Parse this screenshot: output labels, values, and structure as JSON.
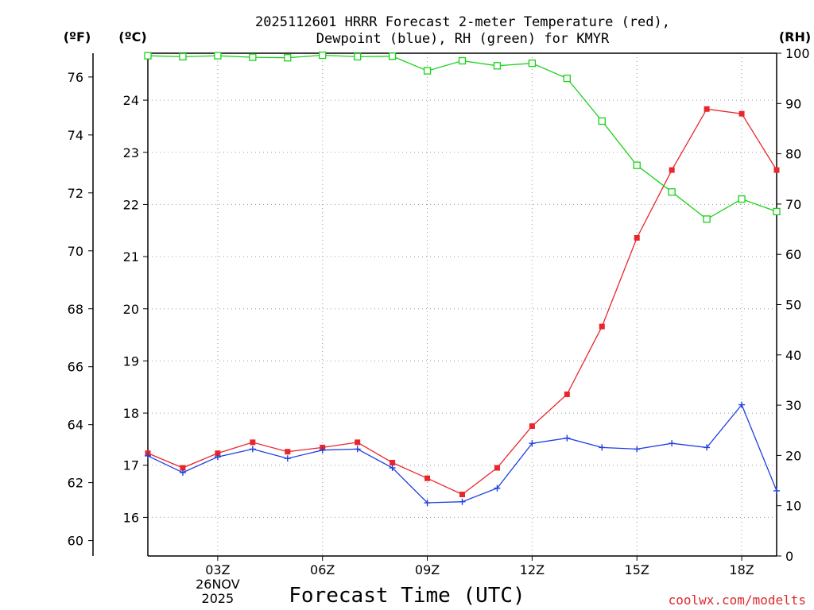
{
  "chart_data": {
    "type": "line",
    "title_lines": [
      "2025112601 HRRR Forecast 2-meter Temperature (red),",
      "Dewpoint (blue), RH (green) for KMYR"
    ],
    "xlabel": "Forecast Time (UTC)",
    "x_hours": [
      1,
      2,
      3,
      4,
      5,
      6,
      7,
      8,
      9,
      10,
      11,
      12,
      13,
      14,
      15,
      16,
      17,
      18,
      19
    ],
    "x_range": [
      1,
      19
    ],
    "x_ticks": [
      {
        "hour": 3,
        "label": "03Z"
      },
      {
        "hour": 6,
        "label": "06Z"
      },
      {
        "hour": 9,
        "label": "09Z"
      },
      {
        "hour": 12,
        "label": "12Z"
      },
      {
        "hour": 15,
        "label": "15Z"
      },
      {
        "hour": 18,
        "label": "18Z"
      }
    ],
    "date_label_lines": [
      "26NOV",
      "2025"
    ],
    "date_label_hour": 3,
    "unit_labels": {
      "fahrenheit": "(ºF)",
      "celsius": "(ºC)",
      "rh": "(RH)"
    },
    "celsius_axis": {
      "range": [
        15.26,
        24.9
      ],
      "ticks": [
        16,
        17,
        18,
        19,
        20,
        21,
        22,
        23,
        24
      ]
    },
    "fahrenheit_axis": {
      "ticks": [
        60,
        62,
        64,
        66,
        68,
        70,
        72,
        74,
        76
      ]
    },
    "rh_axis": {
      "range": [
        0,
        100
      ],
      "ticks": [
        0,
        10,
        20,
        30,
        40,
        50,
        60,
        70,
        80,
        90,
        100
      ]
    },
    "series": [
      {
        "name": "Temperature",
        "units": "C",
        "color": "#e8262b",
        "marker": "filled-square",
        "values": [
          17.23,
          16.95,
          17.23,
          17.44,
          17.26,
          17.34,
          17.44,
          17.05,
          16.75,
          16.44,
          16.95,
          17.75,
          18.36,
          19.66,
          21.36,
          22.66,
          23.83,
          23.74,
          22.66
        ]
      },
      {
        "name": "Dewpoint",
        "units": "C",
        "color": "#1f3fe0",
        "marker": "plus",
        "values": [
          17.18,
          16.86,
          17.16,
          17.31,
          17.13,
          17.29,
          17.31,
          16.95,
          16.28,
          16.3,
          16.56,
          17.42,
          17.52,
          17.34,
          17.31,
          17.42,
          17.34,
          18.16,
          16.51
        ]
      },
      {
        "name": "Relative Humidity",
        "units": "%",
        "color": "#19d219",
        "marker": "open-square",
        "values": [
          99.5,
          99.3,
          99.5,
          99.2,
          99.1,
          99.6,
          99.3,
          99.4,
          96.5,
          98.5,
          97.5,
          98.0,
          95.0,
          86.5,
          77.7,
          72.4,
          67.0,
          71.0,
          68.5
        ]
      }
    ]
  },
  "watermark": "coolwx.com/modelts"
}
